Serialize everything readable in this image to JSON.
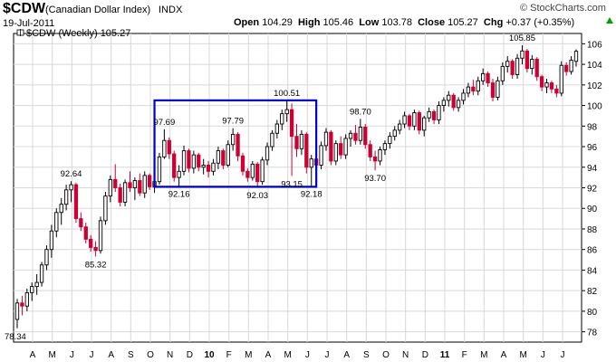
{
  "header": {
    "symbol": "$CDW",
    "name": "(Canadian Dollar Index)",
    "exchange": "INDX",
    "date": "19-Jul-2011",
    "open_label": "Open",
    "open": "104.29",
    "high_label": "High",
    "high": "105.46",
    "low_label": "Low",
    "low": "103.78",
    "close_label": "Close",
    "close": "105.27",
    "chg_label": "Chg",
    "chg": "+0.37 (+0.35%)",
    "logo": "© StockCharts.com"
  },
  "colors": {
    "up": "#000000",
    "down": "#cc0033",
    "box": "#0000cc",
    "grid": "#d8d8d8",
    "change_up": "#00a000"
  },
  "chart_data": {
    "type": "candlestick",
    "legend": "$CDW (Weekly) 105.27",
    "ylim": [
      77,
      107
    ],
    "yticks": [
      78,
      80,
      82,
      84,
      86,
      88,
      90,
      92,
      94,
      96,
      98,
      100,
      102,
      104,
      106
    ],
    "x_labels": [
      "A",
      "M",
      "J",
      "J",
      "A",
      "S",
      "O",
      "N",
      "D",
      "10",
      "F",
      "M",
      "A",
      "M",
      "J",
      "J",
      "A",
      "S",
      "O",
      "N",
      "D",
      "11",
      "F",
      "M",
      "A",
      "M",
      "J",
      "J"
    ],
    "annotations": [
      {
        "text": "78.34",
        "bar": 0,
        "value": 78.34,
        "pos": "below"
      },
      {
        "text": "92.64",
        "bar": 11,
        "value": 92.64,
        "pos": "above"
      },
      {
        "text": "85.32",
        "bar": 16,
        "value": 85.32,
        "pos": "below"
      },
      {
        "text": "97.69",
        "bar": 30,
        "value": 97.69,
        "pos": "above"
      },
      {
        "text": "92.16",
        "bar": 33,
        "value": 92.16,
        "pos": "below"
      },
      {
        "text": "97.79",
        "bar": 44,
        "value": 97.79,
        "pos": "above"
      },
      {
        "text": "92.03",
        "bar": 49,
        "value": 92.03,
        "pos": "below"
      },
      {
        "text": "100.51",
        "bar": 55,
        "value": 100.51,
        "pos": "above"
      },
      {
        "text": "93.15",
        "bar": 56,
        "value": 93.15,
        "pos": "below"
      },
      {
        "text": "92.18",
        "bar": 60,
        "value": 92.18,
        "pos": "below"
      },
      {
        "text": "98.70",
        "bar": 70,
        "value": 98.7,
        "pos": "above"
      },
      {
        "text": "93.70",
        "bar": 73,
        "value": 93.7,
        "pos": "below"
      },
      {
        "text": "105.85",
        "bar": 103,
        "value": 105.85,
        "pos": "above"
      }
    ],
    "range_box": {
      "from_bar": 28,
      "to_bar": 61,
      "top": 100.5,
      "bottom": 92.1
    },
    "bars": [
      {
        "o": 79.2,
        "h": 81.2,
        "l": 78.34,
        "c": 80.8
      },
      {
        "o": 80.8,
        "h": 81.5,
        "l": 79.6,
        "c": 80.5
      },
      {
        "o": 80.5,
        "h": 82.2,
        "l": 80.0,
        "c": 81.8
      },
      {
        "o": 81.8,
        "h": 82.8,
        "l": 81.0,
        "c": 82.4
      },
      {
        "o": 82.4,
        "h": 83.6,
        "l": 81.6,
        "c": 82.8
      },
      {
        "o": 82.8,
        "h": 84.8,
        "l": 82.4,
        "c": 84.5
      },
      {
        "o": 84.5,
        "h": 86.4,
        "l": 84.0,
        "c": 86.0
      },
      {
        "o": 86.0,
        "h": 88.4,
        "l": 85.2,
        "c": 87.8
      },
      {
        "o": 87.8,
        "h": 90.0,
        "l": 87.2,
        "c": 89.6
      },
      {
        "o": 89.6,
        "h": 91.0,
        "l": 88.4,
        "c": 90.4
      },
      {
        "o": 90.4,
        "h": 92.3,
        "l": 89.8,
        "c": 91.8
      },
      {
        "o": 91.8,
        "h": 92.64,
        "l": 90.6,
        "c": 92.3
      },
      {
        "o": 92.3,
        "h": 92.5,
        "l": 88.6,
        "c": 89.0
      },
      {
        "o": 89.0,
        "h": 89.6,
        "l": 87.8,
        "c": 88.2
      },
      {
        "o": 88.2,
        "h": 88.6,
        "l": 86.6,
        "c": 87.0
      },
      {
        "o": 87.0,
        "h": 87.4,
        "l": 85.8,
        "c": 86.2
      },
      {
        "o": 86.2,
        "h": 86.8,
        "l": 85.32,
        "c": 85.9
      },
      {
        "o": 85.9,
        "h": 89.2,
        "l": 85.6,
        "c": 88.8
      },
      {
        "o": 88.8,
        "h": 91.6,
        "l": 88.4,
        "c": 91.2
      },
      {
        "o": 91.2,
        "h": 93.2,
        "l": 90.6,
        "c": 92.8
      },
      {
        "o": 92.8,
        "h": 94.3,
        "l": 91.6,
        "c": 92.0
      },
      {
        "o": 92.0,
        "h": 92.4,
        "l": 90.2,
        "c": 90.6
      },
      {
        "o": 90.6,
        "h": 92.8,
        "l": 90.2,
        "c": 92.5
      },
      {
        "o": 92.5,
        "h": 93.6,
        "l": 91.6,
        "c": 92.0
      },
      {
        "o": 92.0,
        "h": 93.0,
        "l": 90.8,
        "c": 92.7
      },
      {
        "o": 92.7,
        "h": 93.4,
        "l": 91.2,
        "c": 91.5
      },
      {
        "o": 91.5,
        "h": 93.6,
        "l": 91.0,
        "c": 93.2
      },
      {
        "o": 93.2,
        "h": 93.4,
        "l": 91.8,
        "c": 92.1
      },
      {
        "o": 92.1,
        "h": 93.2,
        "l": 91.5,
        "c": 92.6
      },
      {
        "o": 92.6,
        "h": 95.4,
        "l": 92.3,
        "c": 95.0
      },
      {
        "o": 95.0,
        "h": 97.69,
        "l": 94.8,
        "c": 96.6
      },
      {
        "o": 96.6,
        "h": 96.9,
        "l": 94.8,
        "c": 95.3
      },
      {
        "o": 95.3,
        "h": 95.6,
        "l": 92.6,
        "c": 93.0
      },
      {
        "o": 93.0,
        "h": 94.2,
        "l": 92.16,
        "c": 93.6
      },
      {
        "o": 93.6,
        "h": 96.1,
        "l": 93.2,
        "c": 95.6
      },
      {
        "o": 95.6,
        "h": 95.8,
        "l": 93.5,
        "c": 93.9
      },
      {
        "o": 93.9,
        "h": 95.6,
        "l": 93.4,
        "c": 95.2
      },
      {
        "o": 95.2,
        "h": 95.4,
        "l": 93.6,
        "c": 94.0
      },
      {
        "o": 94.0,
        "h": 94.8,
        "l": 93.3,
        "c": 94.2
      },
      {
        "o": 94.2,
        "h": 94.6,
        "l": 93.0,
        "c": 93.6
      },
      {
        "o": 93.6,
        "h": 94.8,
        "l": 93.2,
        "c": 94.4
      },
      {
        "o": 94.4,
        "h": 96.0,
        "l": 93.8,
        "c": 95.6
      },
      {
        "o": 95.6,
        "h": 95.8,
        "l": 93.8,
        "c": 94.2
      },
      {
        "o": 94.2,
        "h": 96.6,
        "l": 94.0,
        "c": 96.2
      },
      {
        "o": 96.2,
        "h": 97.79,
        "l": 95.6,
        "c": 97.2
      },
      {
        "o": 97.2,
        "h": 97.4,
        "l": 94.6,
        "c": 95.1
      },
      {
        "o": 95.1,
        "h": 95.4,
        "l": 93.2,
        "c": 93.6
      },
      {
        "o": 93.6,
        "h": 93.9,
        "l": 92.6,
        "c": 93.0
      },
      {
        "o": 93.0,
        "h": 94.6,
        "l": 92.7,
        "c": 94.3
      },
      {
        "o": 94.3,
        "h": 94.5,
        "l": 92.03,
        "c": 92.6
      },
      {
        "o": 92.6,
        "h": 95.0,
        "l": 92.3,
        "c": 94.7
      },
      {
        "o": 94.7,
        "h": 96.4,
        "l": 94.2,
        "c": 96.0
      },
      {
        "o": 96.0,
        "h": 97.6,
        "l": 95.6,
        "c": 97.3
      },
      {
        "o": 97.3,
        "h": 98.6,
        "l": 96.8,
        "c": 98.2
      },
      {
        "o": 98.2,
        "h": 99.6,
        "l": 97.6,
        "c": 99.2
      },
      {
        "o": 99.2,
        "h": 100.51,
        "l": 98.4,
        "c": 99.6
      },
      {
        "o": 99.6,
        "h": 100.2,
        "l": 93.15,
        "c": 97.0
      },
      {
        "o": 97.0,
        "h": 98.2,
        "l": 95.0,
        "c": 95.8
      },
      {
        "o": 95.8,
        "h": 97.6,
        "l": 95.2,
        "c": 97.2
      },
      {
        "o": 97.2,
        "h": 97.4,
        "l": 93.4,
        "c": 94.0
      },
      {
        "o": 94.0,
        "h": 95.2,
        "l": 92.18,
        "c": 94.8
      },
      {
        "o": 94.8,
        "h": 95.2,
        "l": 93.6,
        "c": 94.2
      },
      {
        "o": 94.2,
        "h": 96.5,
        "l": 93.8,
        "c": 96.1
      },
      {
        "o": 96.1,
        "h": 97.8,
        "l": 95.6,
        "c": 97.4
      },
      {
        "o": 97.4,
        "h": 97.6,
        "l": 94.2,
        "c": 94.6
      },
      {
        "o": 94.6,
        "h": 96.6,
        "l": 94.2,
        "c": 96.3
      },
      {
        "o": 96.3,
        "h": 97.0,
        "l": 94.8,
        "c": 95.2
      },
      {
        "o": 95.2,
        "h": 97.2,
        "l": 94.8,
        "c": 96.8
      },
      {
        "o": 96.8,
        "h": 97.6,
        "l": 96.0,
        "c": 97.3
      },
      {
        "o": 97.3,
        "h": 98.1,
        "l": 96.2,
        "c": 96.6
      },
      {
        "o": 96.6,
        "h": 98.7,
        "l": 96.2,
        "c": 97.9
      },
      {
        "o": 97.9,
        "h": 98.2,
        "l": 95.8,
        "c": 96.2
      },
      {
        "o": 96.2,
        "h": 96.6,
        "l": 94.6,
        "c": 95.0
      },
      {
        "o": 95.0,
        "h": 95.6,
        "l": 93.7,
        "c": 94.6
      },
      {
        "o": 94.6,
        "h": 96.0,
        "l": 94.2,
        "c": 95.7
      },
      {
        "o": 95.7,
        "h": 96.6,
        "l": 95.2,
        "c": 96.3
      },
      {
        "o": 96.3,
        "h": 97.4,
        "l": 95.8,
        "c": 97.0
      },
      {
        "o": 97.0,
        "h": 98.0,
        "l": 96.6,
        "c": 97.6
      },
      {
        "o": 97.6,
        "h": 98.6,
        "l": 97.2,
        "c": 98.2
      },
      {
        "o": 98.2,
        "h": 99.4,
        "l": 97.8,
        "c": 99.0
      },
      {
        "o": 99.0,
        "h": 99.2,
        "l": 97.6,
        "c": 98.0
      },
      {
        "o": 98.0,
        "h": 99.6,
        "l": 97.6,
        "c": 99.3
      },
      {
        "o": 99.3,
        "h": 99.5,
        "l": 97.2,
        "c": 97.6
      },
      {
        "o": 97.6,
        "h": 99.0,
        "l": 97.0,
        "c": 98.8
      },
      {
        "o": 98.8,
        "h": 99.8,
        "l": 98.4,
        "c": 99.4
      },
      {
        "o": 99.4,
        "h": 99.6,
        "l": 98.2,
        "c": 98.6
      },
      {
        "o": 98.6,
        "h": 100.4,
        "l": 98.2,
        "c": 100.0
      },
      {
        "o": 100.0,
        "h": 100.8,
        "l": 99.4,
        "c": 100.5
      },
      {
        "o": 100.5,
        "h": 101.4,
        "l": 99.9,
        "c": 101.0
      },
      {
        "o": 101.0,
        "h": 101.2,
        "l": 99.5,
        "c": 99.8
      },
      {
        "o": 99.8,
        "h": 100.8,
        "l": 99.4,
        "c": 100.5
      },
      {
        "o": 100.5,
        "h": 101.6,
        "l": 100.1,
        "c": 101.2
      },
      {
        "o": 101.2,
        "h": 102.2,
        "l": 100.8,
        "c": 101.8
      },
      {
        "o": 101.8,
        "h": 102.5,
        "l": 101.0,
        "c": 101.4
      },
      {
        "o": 101.4,
        "h": 102.8,
        "l": 101.0,
        "c": 102.4
      },
      {
        "o": 102.4,
        "h": 103.6,
        "l": 102.0,
        "c": 103.1
      },
      {
        "o": 103.1,
        "h": 103.3,
        "l": 101.8,
        "c": 102.2
      },
      {
        "o": 102.2,
        "h": 102.6,
        "l": 100.4,
        "c": 100.8
      },
      {
        "o": 100.8,
        "h": 102.8,
        "l": 100.5,
        "c": 102.4
      },
      {
        "o": 102.4,
        "h": 104.2,
        "l": 102.0,
        "c": 103.8
      },
      {
        "o": 103.8,
        "h": 104.8,
        "l": 103.2,
        "c": 104.3
      },
      {
        "o": 104.3,
        "h": 104.5,
        "l": 102.6,
        "c": 103.0
      },
      {
        "o": 103.0,
        "h": 105.0,
        "l": 102.6,
        "c": 104.6
      },
      {
        "o": 104.6,
        "h": 105.85,
        "l": 104.0,
        "c": 105.3
      },
      {
        "o": 105.3,
        "h": 105.5,
        "l": 103.2,
        "c": 103.6
      },
      {
        "o": 103.6,
        "h": 104.9,
        "l": 103.0,
        "c": 104.5
      },
      {
        "o": 104.5,
        "h": 104.7,
        "l": 102.4,
        "c": 102.8
      },
      {
        "o": 102.8,
        "h": 103.0,
        "l": 101.4,
        "c": 101.8
      },
      {
        "o": 101.8,
        "h": 102.6,
        "l": 101.2,
        "c": 102.2
      },
      {
        "o": 102.2,
        "h": 102.4,
        "l": 101.2,
        "c": 101.6
      },
      {
        "o": 101.6,
        "h": 102.0,
        "l": 100.8,
        "c": 101.2
      },
      {
        "o": 101.2,
        "h": 104.3,
        "l": 100.9,
        "c": 103.9
      },
      {
        "o": 103.9,
        "h": 104.2,
        "l": 102.9,
        "c": 103.3
      },
      {
        "o": 103.3,
        "h": 104.8,
        "l": 103.0,
        "c": 104.4
      },
      {
        "o": 104.29,
        "h": 105.46,
        "l": 103.78,
        "c": 105.27
      }
    ]
  }
}
